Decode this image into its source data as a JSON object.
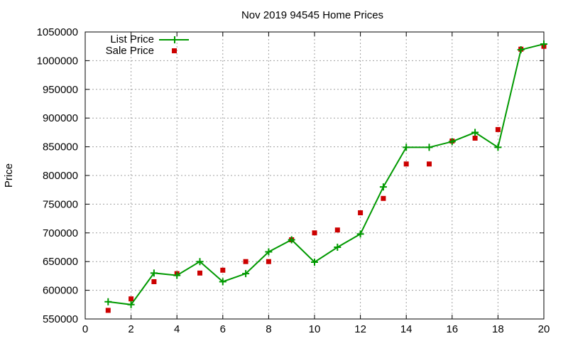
{
  "chart_data": {
    "type": "line",
    "title": "Nov 2019 94545 Home Prices",
    "xlabel": "",
    "ylabel": "Price",
    "xlim": [
      0,
      20
    ],
    "ylim": [
      550000,
      1050000
    ],
    "x_ticks": [
      "0",
      "2",
      "4",
      "6",
      "8",
      "10",
      "12",
      "14",
      "16",
      "18",
      "20"
    ],
    "y_ticks": [
      "550000",
      "600000",
      "650000",
      "700000",
      "750000",
      "800000",
      "850000",
      "900000",
      "950000",
      "1000000",
      "1050000"
    ],
    "grid": true,
    "legend_position": "top-left",
    "series": [
      {
        "name": "List Price",
        "style": "line-with-plus-markers",
        "color": "#009900",
        "x": [
          1,
          2,
          3,
          4,
          5,
          6,
          7,
          8,
          9,
          10,
          11,
          12,
          13,
          14,
          15,
          16,
          17,
          18,
          19,
          20
        ],
        "values": [
          580000,
          575000,
          630000,
          626000,
          650000,
          615000,
          629000,
          667000,
          688000,
          649000,
          675000,
          698000,
          780000,
          849000,
          849000,
          859000,
          875000,
          849000,
          1019000,
          1029000
        ]
      },
      {
        "name": "Sale Price",
        "style": "square-markers",
        "color": "#cc0000",
        "x": [
          1,
          2,
          3,
          4,
          5,
          6,
          7,
          8,
          9,
          10,
          11,
          12,
          13,
          14,
          15,
          16,
          17,
          18,
          19,
          20
        ],
        "values": [
          565000,
          585000,
          615000,
          629000,
          630000,
          635000,
          650000,
          650000,
          688000,
          700000,
          705000,
          735000,
          760000,
          820000,
          820000,
          860000,
          865000,
          880000,
          1020000,
          1025000
        ]
      }
    ]
  }
}
